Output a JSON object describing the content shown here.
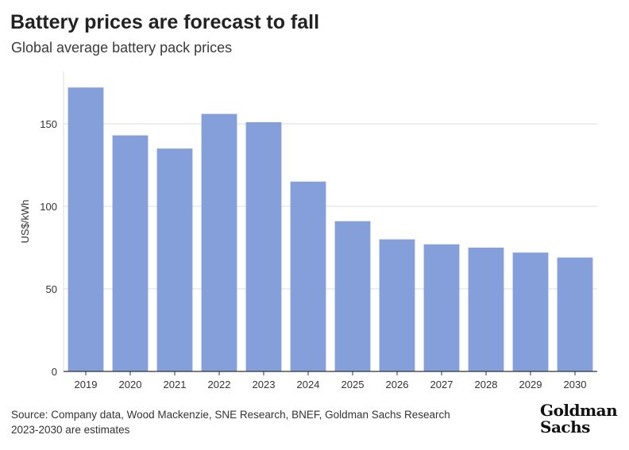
{
  "chart_data": {
    "type": "bar",
    "title": "Battery prices are forecast to fall",
    "subtitle": "Global average battery pack prices",
    "xlabel": "",
    "ylabel": "US$/kWh",
    "categories": [
      "2019",
      "2020",
      "2021",
      "2022",
      "2023",
      "2024",
      "2025",
      "2026",
      "2027",
      "2028",
      "2029",
      "2030"
    ],
    "values": [
      172,
      143,
      135,
      156,
      151,
      115,
      91,
      80,
      77,
      75,
      72,
      69
    ],
    "ylim": [
      0,
      175
    ],
    "yticks": [
      0,
      50,
      100,
      150
    ],
    "grid": true,
    "bar_color": "#849fda",
    "grid_color": "#dddddd",
    "axis_color": "#333333"
  },
  "footer": {
    "source": "Source: Company data, Wood Mackenzie, SNE Research, BNEF, Goldman Sachs Research",
    "note": "2023-2030 are estimates"
  },
  "logo": {
    "line1": "Goldman",
    "line2": "Sachs"
  }
}
